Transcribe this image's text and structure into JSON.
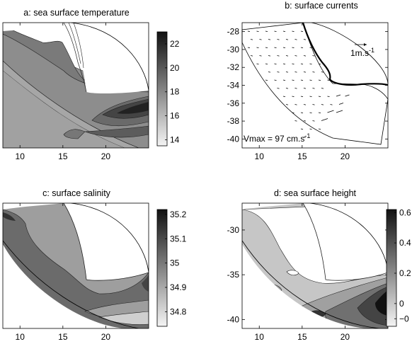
{
  "chart_data": [
    {
      "type": "heatmap",
      "title": "a: sea surface temperature",
      "xticks": [
        10,
        15,
        20
      ],
      "yticks": [],
      "xlim": [
        8,
        25
      ],
      "colorbar": {
        "ticks": [
          14,
          16,
          18,
          20,
          22
        ],
        "range": [
          13.5,
          23
        ]
      }
    },
    {
      "type": "vector",
      "title": "b: surface currents",
      "xticks": [
        10,
        15,
        20
      ],
      "yticks": [
        -28,
        -30,
        -32,
        -34,
        -36,
        -38,
        -40
      ],
      "xlim": [
        8,
        25
      ],
      "ylim": [
        -41,
        -27
      ],
      "reference_label": "1m.s",
      "reference_exp": "-1",
      "vmax_label": "Vmax = 97 cm.s",
      "vmax_exp": "-1"
    },
    {
      "type": "heatmap",
      "title": "c: surface salinity",
      "xticks": [
        10,
        15,
        20
      ],
      "yticks": [],
      "xlim": [
        8,
        25
      ],
      "colorbar": {
        "ticks": [
          35.2,
          35.1,
          35,
          34.9,
          34.8
        ],
        "range": [
          34.74,
          35.22
        ]
      }
    },
    {
      "type": "heatmap",
      "title": "d: sea surface height",
      "xticks": [
        10,
        15,
        20
      ],
      "yticks": [
        -30,
        -35,
        -40
      ],
      "xlim": [
        8,
        25
      ],
      "ylim": [
        -41,
        -27
      ],
      "colorbar": {
        "ticks": [
          "0.6",
          "0.4",
          "0.2",
          "0",
          "−0"
        ],
        "range": [
          -0.15,
          0.62
        ]
      }
    }
  ]
}
